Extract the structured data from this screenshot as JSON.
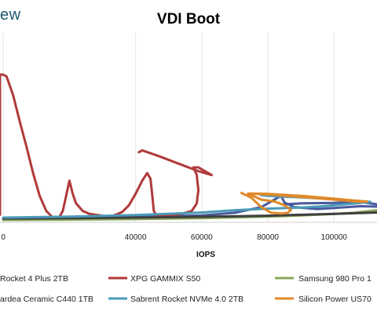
{
  "brand": "ew",
  "chart_data": {
    "type": "line",
    "title": "VDI Boot",
    "xlabel": "IOPS",
    "ylabel": "",
    "xlim": [
      -1000,
      113000
    ],
    "ylim": [
      0,
      100
    ],
    "x_ticks": [
      "0",
      "40000",
      "60000",
      "80000",
      "100000"
    ],
    "x_tick_values": [
      0,
      40000,
      60000,
      80000,
      100000
    ],
    "grid": true,
    "legend_position": "bottom",
    "series": [
      {
        "name": "Rocket 4 Plus 2TB",
        "color": "#4a5a9e",
        "points": [
          [
            0,
            2.2
          ],
          [
            20000,
            2.5
          ],
          [
            40000,
            3.0
          ],
          [
            60000,
            3.6
          ],
          [
            70000,
            5.0
          ],
          [
            78000,
            8.0
          ],
          [
            82000,
            12.0
          ],
          [
            84000,
            14.0
          ],
          [
            85000,
            10.5
          ],
          [
            88000,
            8.0
          ],
          [
            95000,
            7.0
          ],
          [
            100000,
            7.6
          ],
          [
            108000,
            8.5
          ],
          [
            113000,
            8.3
          ],
          [
            113000,
            9.5
          ],
          [
            107000,
            11.0
          ],
          [
            100000,
            10.3
          ],
          [
            90000,
            10.0
          ],
          [
            85000,
            9.5
          ]
        ]
      },
      {
        "name": "XPG GAMMIX S50",
        "color": "#b03a3a",
        "points": [
          [
            -1000,
            4
          ],
          [
            -1000,
            78
          ],
          [
            0,
            78
          ],
          [
            1000,
            77
          ],
          [
            3000,
            67
          ],
          [
            5000,
            53
          ],
          [
            7000,
            40
          ],
          [
            9000,
            26
          ],
          [
            11000,
            14
          ],
          [
            13000,
            6
          ],
          [
            15000,
            2.5
          ],
          [
            16000,
            2
          ],
          [
            17000,
            3
          ],
          [
            18000,
            6
          ],
          [
            19000,
            14
          ],
          [
            20000,
            22
          ],
          [
            21000,
            15
          ],
          [
            22000,
            10
          ],
          [
            24000,
            6
          ],
          [
            26000,
            4.5
          ],
          [
            28000,
            4
          ],
          [
            30000,
            3.5
          ],
          [
            32000,
            3
          ],
          [
            34000,
            4
          ],
          [
            36000,
            5.5
          ],
          [
            38000,
            9
          ],
          [
            40000,
            15
          ],
          [
            42000,
            22
          ],
          [
            43500,
            26
          ],
          [
            44500,
            23
          ],
          [
            45000,
            15
          ],
          [
            45500,
            6
          ],
          [
            46500,
            3.2
          ],
          [
            50000,
            3.5
          ],
          [
            54000,
            4.5
          ],
          [
            57000,
            6
          ],
          [
            58500,
            10
          ],
          [
            59000,
            17
          ],
          [
            58500,
            25
          ],
          [
            57500,
            29
          ],
          [
            59000,
            29
          ],
          [
            61000,
            27
          ],
          [
            63000,
            25
          ],
          [
            59000,
            27
          ],
          [
            53000,
            31
          ],
          [
            47000,
            35
          ],
          [
            42000,
            38
          ],
          [
            41000,
            37
          ]
        ]
      },
      {
        "name": "Samsung 980 Pro 1",
        "color": "#8aa85a",
        "points": [
          [
            0,
            1.2
          ],
          [
            20000,
            1.4
          ],
          [
            40000,
            1.7
          ],
          [
            60000,
            2.2
          ],
          [
            80000,
            3.0
          ],
          [
            90000,
            3.6
          ],
          [
            100000,
            4.4
          ],
          [
            106000,
            5.0
          ],
          [
            110000,
            5.8
          ],
          [
            113000,
            6.4
          ]
        ]
      },
      {
        "name": "ardea Ceramic C440 1TB",
        "color": "#3f3f3f",
        "points": [
          [
            0,
            2.0
          ],
          [
            20000,
            2.2
          ],
          [
            40000,
            2.5
          ],
          [
            60000,
            2.9
          ],
          [
            80000,
            3.5
          ],
          [
            100000,
            4.5
          ],
          [
            113000,
            5.2
          ]
        ]
      },
      {
        "name": "Sabrent Rocket NVMe 4.0 2TB",
        "color": "#4a9ab8",
        "points": [
          [
            0,
            2.5
          ],
          [
            20000,
            3.0
          ],
          [
            40000,
            3.8
          ],
          [
            60000,
            5.2
          ],
          [
            70000,
            6.4
          ],
          [
            80000,
            7.2
          ],
          [
            90000,
            7.8
          ],
          [
            96000,
            8.4
          ],
          [
            100000,
            9.0
          ],
          [
            108000,
            10.2
          ],
          [
            111000,
            10.8
          ],
          [
            109000,
            11.0
          ],
          [
            100000,
            12.2
          ],
          [
            90000,
            13.2
          ],
          [
            84000,
            13.6
          ],
          [
            80000,
            14.0
          ],
          [
            78000,
            14.3
          ]
        ]
      },
      {
        "name": "Silicon Power US70",
        "color": "#e0892a",
        "points": [
          [
            72000,
            15.5
          ],
          [
            75000,
            13.0
          ],
          [
            78000,
            8.0
          ],
          [
            81000,
            5.0
          ],
          [
            84000,
            4.6
          ],
          [
            86000,
            5.0
          ],
          [
            87000,
            6.5
          ],
          [
            85000,
            9.0
          ],
          [
            82000,
            11.0
          ],
          [
            78000,
            12.0
          ],
          [
            74000,
            15.2
          ],
          [
            80000,
            15.0
          ],
          [
            90000,
            14.0
          ],
          [
            100000,
            12.5
          ],
          [
            106000,
            11.5
          ],
          [
            110000,
            11.0
          ],
          [
            108000,
            10.8
          ],
          [
            100000,
            12.0
          ],
          [
            90000,
            13.4
          ],
          [
            82000,
            14.5
          ],
          [
            76000,
            15.0
          ]
        ]
      }
    ]
  }
}
